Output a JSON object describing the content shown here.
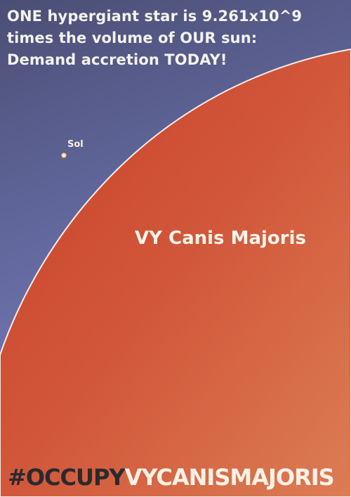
{
  "headline": {
    "line1": "ONE hypergiant star is 9.261x10^9",
    "line2": "times the volume of OUR sun:",
    "line3": "Demand accretion TODAY!"
  },
  "sol": {
    "label": "Sol"
  },
  "star": {
    "label": "VY Canis Majoris"
  },
  "hashtag": {
    "prefix": "#OCCUPY",
    "suffix": "VYCANISMAJORIS"
  },
  "colors": {
    "sky": "#6a6fa8",
    "star_dark": "#c9442d",
    "star_light": "#d97a52",
    "star_rim": "#f2ede6",
    "text_light": "#f4f2ee",
    "text_dark": "#2a2a2e"
  }
}
